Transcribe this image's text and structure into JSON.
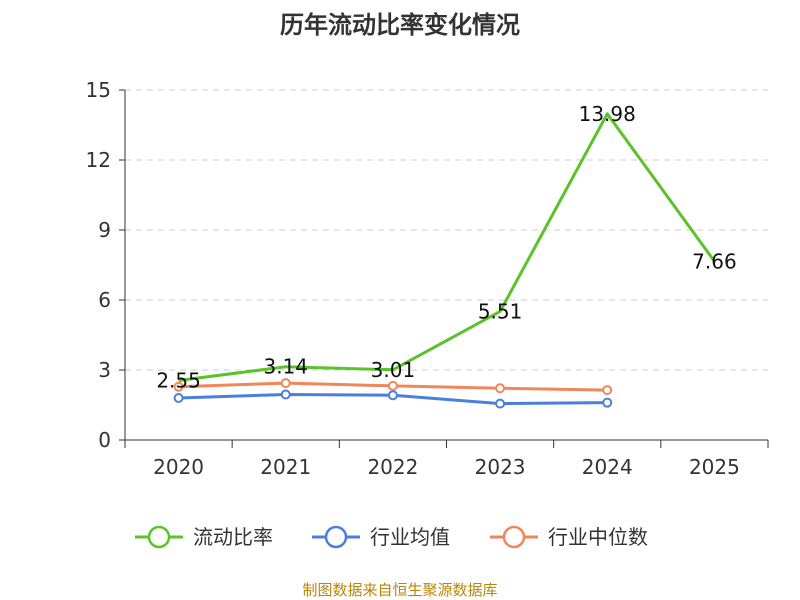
{
  "chart_data": {
    "type": "line",
    "title": "历年流动比率变化情况",
    "xlabel": "",
    "ylabel": "",
    "categories": [
      "2020",
      "2021",
      "2022",
      "2023",
      "2024",
      "2025"
    ],
    "ylim": [
      0,
      15
    ],
    "yticks": [
      "0",
      "3",
      "6",
      "9",
      "12",
      "15"
    ],
    "grid": true,
    "legend_position": "bottom",
    "series": [
      {
        "name": "流动比率",
        "color": "#5cc22a",
        "values": [
          2.55,
          3.14,
          3.01,
          5.51,
          13.98,
          7.66
        ],
        "labels": [
          "2.55",
          "3.14",
          "3.01",
          "5.51",
          "13.98",
          "7.66"
        ],
        "show_markers": false
      },
      {
        "name": "行业均值",
        "color": "#4a7fde",
        "values": [
          1.8,
          1.95,
          1.92,
          1.56,
          1.6,
          null
        ],
        "show_markers": true
      },
      {
        "name": "行业中位数",
        "color": "#f0875a",
        "values": [
          2.28,
          2.44,
          2.32,
          2.22,
          2.14,
          null
        ],
        "show_markers": true
      }
    ],
    "source": "制图数据来自恒生聚源数据库"
  }
}
